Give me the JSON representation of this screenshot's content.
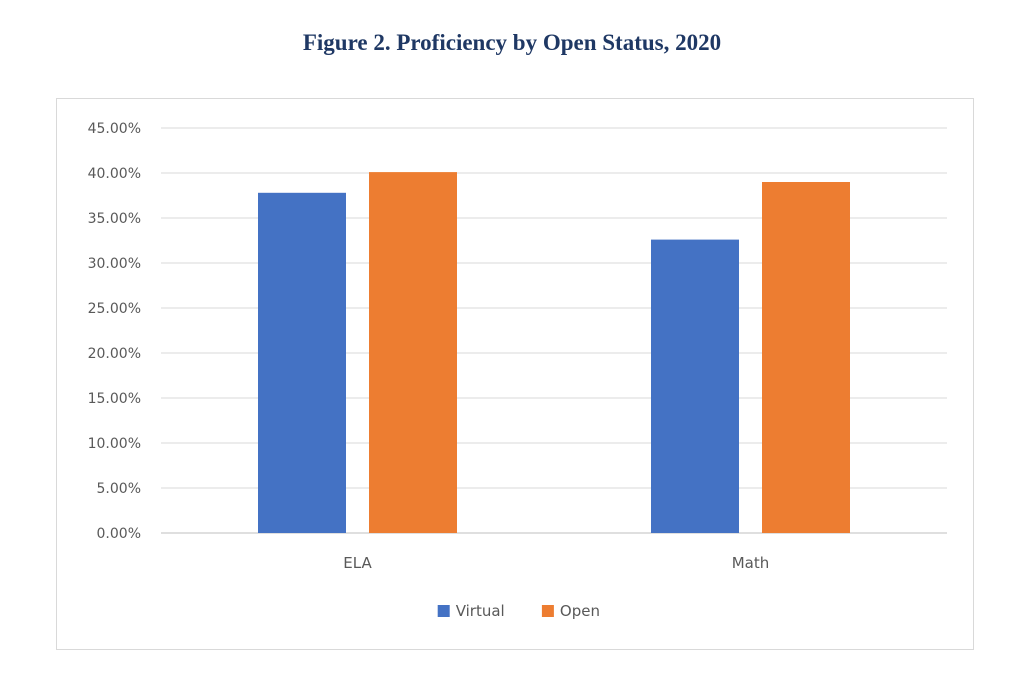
{
  "figure": {
    "title": "Figure 2.  Proficiency by Open Status, 2020"
  },
  "chart_data": {
    "type": "bar",
    "title": "",
    "xlabel": "",
    "ylabel": "",
    "categories": [
      "ELA",
      "Math"
    ],
    "series": [
      {
        "name": "Virtual",
        "color": "#4472c4",
        "values": [
          37.8,
          32.6
        ]
      },
      {
        "name": "Open",
        "color": "#ed7d31",
        "values": [
          40.1,
          39.0
        ]
      }
    ],
    "ylim": [
      0,
      45
    ],
    "yticks": [
      0,
      5,
      10,
      15,
      20,
      25,
      30,
      35,
      40,
      45
    ],
    "ytick_labels": [
      "0.00%",
      "5.00%",
      "10.00%",
      "15.00%",
      "20.00%",
      "25.00%",
      "30.00%",
      "35.00%",
      "40.00%",
      "45.00%"
    ],
    "grid": true,
    "legend_position": "bottom"
  }
}
